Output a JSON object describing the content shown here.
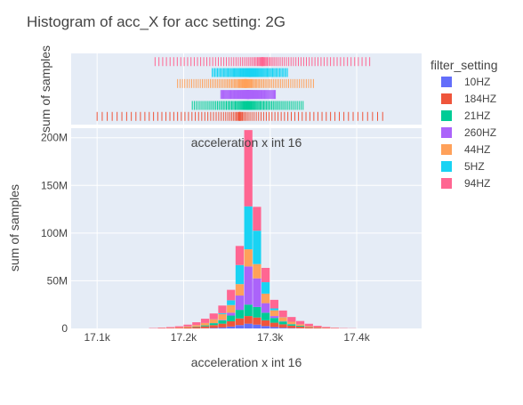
{
  "chart_data": {
    "type": "bar",
    "title": "Histogram of acc_X for acc setting: 2G",
    "xlabel": "acceleration x int 16",
    "ylabel": "sum of samples",
    "marginal_ylabel": "sum of samples",
    "annotation": "acceleration x int 16",
    "xlim": [
      17070,
      17475
    ],
    "ylim": [
      0,
      210000000
    ],
    "xticks": [
      17100,
      17200,
      17300,
      17400
    ],
    "xtick_labels": [
      "17.1k",
      "17.2k",
      "17.3k",
      "17.4k"
    ],
    "yticks": [
      0,
      50000000,
      100000000,
      150000000,
      200000000
    ],
    "ytick_labels": [
      "0",
      "50M",
      "100M",
      "150M",
      "200M"
    ],
    "grid": true,
    "legend_title": "filter_setting",
    "legend_position": "right",
    "x": [
      17165,
      17175,
      17185,
      17195,
      17205,
      17215,
      17225,
      17235,
      17245,
      17255,
      17265,
      17275,
      17285,
      17295,
      17305,
      17315,
      17325,
      17335,
      17345,
      17355,
      17365,
      17375,
      17385,
      17395
    ],
    "series": [
      {
        "name": "10HZ",
        "color": "#636efa",
        "values": [
          0,
          0,
          0,
          0,
          0,
          0,
          200000,
          500000,
          1000000,
          2000000,
          3500000,
          5000000,
          4000000,
          2500000,
          1500000,
          800000,
          400000,
          200000,
          100000,
          0,
          0,
          0,
          0,
          0
        ]
      },
      {
        "name": "184HZ",
        "color": "#ef553b",
        "values": [
          200000,
          300000,
          400000,
          700000,
          1000000,
          1500000,
          2000000,
          3000000,
          4000000,
          5500000,
          7000000,
          8000000,
          7500000,
          6000000,
          4500000,
          3500000,
          2500000,
          1800000,
          1200000,
          800000,
          500000,
          300000,
          200000,
          100000
        ]
      },
      {
        "name": "21HZ",
        "color": "#00cc96",
        "values": [
          0,
          0,
          0,
          0,
          200000,
          500000,
          1000000,
          2000000,
          3500000,
          6000000,
          9000000,
          12000000,
          11000000,
          8000000,
          5000000,
          3000000,
          1500000,
          800000,
          300000,
          100000,
          0,
          0,
          0,
          0
        ]
      },
      {
        "name": "260HZ",
        "color": "#ab63fa",
        "values": [
          0,
          0,
          0,
          0,
          0,
          0,
          0,
          100000,
          500000,
          3000000,
          15000000,
          40000000,
          30000000,
          10000000,
          2000000,
          300000,
          100000,
          0,
          0,
          0,
          0,
          0,
          0,
          0
        ]
      },
      {
        "name": "44HZ",
        "color": "#ffa15a",
        "values": [
          0,
          100000,
          200000,
          400000,
          800000,
          1500000,
          2500000,
          4000000,
          6000000,
          8000000,
          12000000,
          18000000,
          15000000,
          10000000,
          6000000,
          4000000,
          2500000,
          1500000,
          800000,
          400000,
          200000,
          100000,
          0,
          0
        ]
      },
      {
        "name": "5HZ",
        "color": "#19d3f3",
        "values": [
          0,
          0,
          0,
          0,
          0,
          0,
          0,
          100000,
          1000000,
          5000000,
          20000000,
          45000000,
          35000000,
          12000000,
          2000000,
          200000,
          0,
          0,
          0,
          0,
          0,
          0,
          0,
          0
        ]
      },
      {
        "name": "94HZ",
        "color": "#ff6692",
        "values": [
          300000,
          500000,
          800000,
          1200000,
          2000000,
          3000000,
          4500000,
          6000000,
          8000000,
          11000000,
          20000000,
          80000000,
          25000000,
          15000000,
          9000000,
          7000000,
          5000000,
          3500000,
          2500000,
          1500000,
          800000,
          400000,
          200000,
          100000
        ]
      }
    ],
    "rug": [
      {
        "name": "94HZ",
        "color": "#ff6692",
        "range": [
          17167,
          17415
        ]
      },
      {
        "name": "5HZ",
        "color": "#19d3f3",
        "range": [
          17233,
          17320
        ]
      },
      {
        "name": "44HZ",
        "color": "#ffa15a",
        "range": [
          17193,
          17350
        ]
      },
      {
        "name": "260HZ",
        "color": "#ab63fa",
        "range": [
          17243,
          17306
        ]
      },
      {
        "name": "21HZ",
        "color": "#00cc96",
        "range": [
          17210,
          17338
        ]
      },
      {
        "name": "184HZ",
        "color": "#ef553b",
        "range": [
          17100,
          17430
        ]
      }
    ]
  }
}
